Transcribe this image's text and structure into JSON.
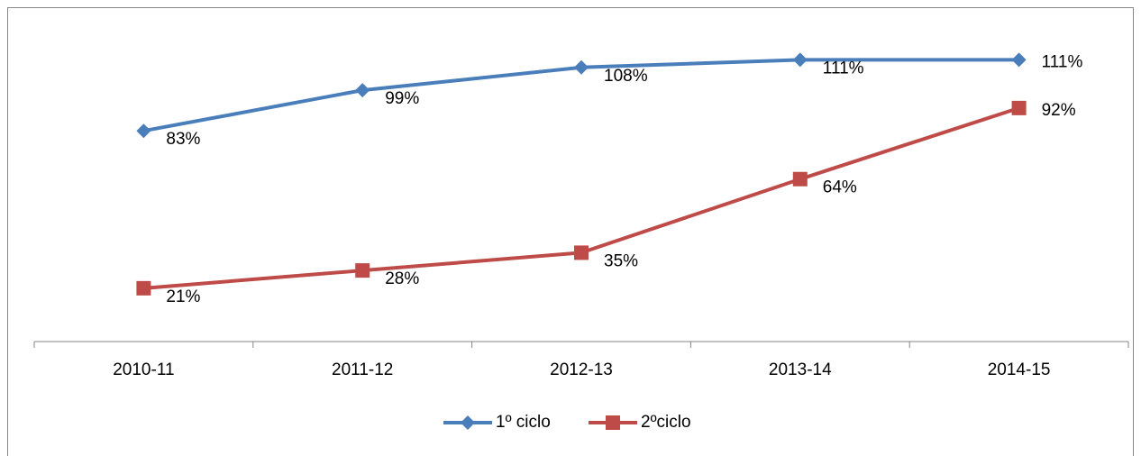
{
  "chart_data": {
    "type": "line",
    "categories": [
      "2010-11",
      "2011-12",
      "2012-13",
      "2013-14",
      "2014-15"
    ],
    "series": [
      {
        "name": "1º ciclo",
        "color": "#4a7ebb",
        "marker": "diamond",
        "values": [
          83,
          99,
          108,
          111,
          111
        ],
        "value_labels": [
          "83%",
          "99%",
          "108%",
          "111%",
          "111%"
        ]
      },
      {
        "name": "2ºciclo",
        "color": "#be4b48",
        "marker": "square",
        "values": [
          21,
          28,
          35,
          64,
          92
        ],
        "value_labels": [
          "21%",
          "28%",
          "35%",
          "64%",
          "92%"
        ]
      }
    ],
    "ylim": [
      0,
      120
    ],
    "legend": "bottom"
  }
}
